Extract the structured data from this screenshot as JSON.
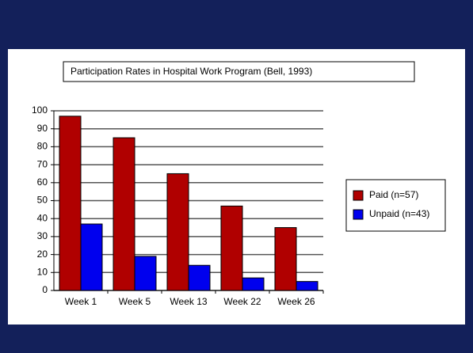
{
  "chart_data": {
    "type": "bar",
    "title": "Participation Rates in Hospital Work Program (Bell, 1993)",
    "categories": [
      "Week 1",
      "Week 5",
      "Week 13",
      "Week 22",
      "Week 26"
    ],
    "series": [
      {
        "name": "Paid (n=57)",
        "color": "#b00000",
        "values": [
          97,
          85,
          65,
          47,
          35
        ]
      },
      {
        "name": "Unpaid (n=43)",
        "color": "#0000ee",
        "values": [
          37,
          19,
          14,
          7,
          5
        ]
      }
    ],
    "ylim": [
      0,
      100
    ],
    "yticks": [
      0,
      10,
      20,
      30,
      40,
      50,
      60,
      70,
      80,
      90,
      100
    ],
    "grid": true,
    "legend": "right"
  }
}
